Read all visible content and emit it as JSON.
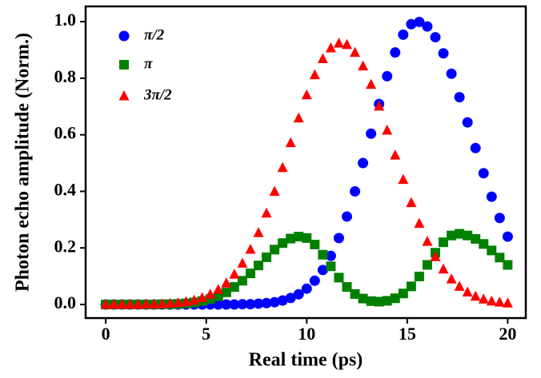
{
  "chart_data": {
    "type": "scatter",
    "xlabel": "Real time (ps)",
    "ylabel": "Photon echo amplitude (Norm.)",
    "x": [
      0,
      0.4,
      0.8,
      1.2,
      1.6,
      2,
      2.4,
      2.8,
      3.2,
      3.6,
      4,
      4.4,
      4.8,
      5.2,
      5.6,
      6,
      6.4,
      6.8,
      7.2,
      7.6,
      8,
      8.4,
      8.8,
      9.2,
      9.6,
      10,
      10.4,
      10.8,
      11.2,
      11.6,
      12,
      12.4,
      12.8,
      13.2,
      13.6,
      14,
      14.4,
      14.8,
      15.2,
      15.6,
      16,
      16.4,
      16.8,
      17.2,
      17.6,
      18,
      18.4,
      18.8,
      19.2,
      19.6,
      20
    ],
    "series": [
      {
        "name": "π/2",
        "color": "#0000ff",
        "marker": "circle",
        "values": [
          0,
          0,
          0,
          0,
          0,
          0,
          0,
          0,
          0,
          0,
          0,
          0,
          0,
          0,
          0,
          0,
          0,
          0.001,
          0.001,
          0.003,
          0.005,
          0.008,
          0.014,
          0.023,
          0.036,
          0.056,
          0.084,
          0.122,
          0.172,
          0.235,
          0.311,
          0.4,
          0.5,
          0.604,
          0.709,
          0.807,
          0.891,
          0.954,
          0.991,
          0.999,
          0.983,
          0.945,
          0.888,
          0.816,
          0.733,
          0.644,
          0.553,
          0.464,
          0.381,
          0.306,
          0.24
        ]
      },
      {
        "name": "π",
        "color": "#008000",
        "marker": "square",
        "values": [
          0,
          0,
          0,
          0,
          0,
          0,
          0,
          0.001,
          0.001,
          0.002,
          0.004,
          0.007,
          0.012,
          0.019,
          0.029,
          0.043,
          0.062,
          0.084,
          0.11,
          0.138,
          0.167,
          0.194,
          0.217,
          0.233,
          0.24,
          0.235,
          0.212,
          0.176,
          0.135,
          0.095,
          0.062,
          0.037,
          0.021,
          0.012,
          0.01,
          0.013,
          0.022,
          0.039,
          0.064,
          0.099,
          0.14,
          0.183,
          0.22,
          0.244,
          0.25,
          0.244,
          0.232,
          0.214,
          0.191,
          0.166,
          0.14
        ]
      },
      {
        "name": "3π/2",
        "color": "#ff0000",
        "marker": "triangle",
        "values": [
          0,
          0,
          0,
          0,
          0,
          0.001,
          0.001,
          0.002,
          0.004,
          0.006,
          0.01,
          0.015,
          0.024,
          0.036,
          0.053,
          0.076,
          0.107,
          0.146,
          0.195,
          0.254,
          0.323,
          0.4,
          0.484,
          0.572,
          0.659,
          0.741,
          0.812,
          0.869,
          0.907,
          0.924,
          0.919,
          0.891,
          0.843,
          0.778,
          0.701,
          0.616,
          0.528,
          0.442,
          0.36,
          0.287,
          0.223,
          0.169,
          0.125,
          0.09,
          0.064,
          0.044,
          0.029,
          0.019,
          0.012,
          0.008,
          0.005
        ]
      }
    ],
    "xlim": [
      -1,
      20.9
    ],
    "ylim": [
      -0.048,
      1.054
    ],
    "xticks": [
      0,
      5,
      10,
      15,
      20
    ],
    "yticks": [
      {
        "value": 0,
        "label": "0.0"
      },
      {
        "value": 0.2,
        "label": "0.2"
      },
      {
        "value": 0.4,
        "label": "0.4"
      },
      {
        "value": 0.6,
        "label": "0.6"
      },
      {
        "value": 0.8,
        "label": "0.8"
      },
      {
        "value": 1,
        "label": "1.0"
      }
    ],
    "grid": false,
    "legend": "upper left"
  }
}
